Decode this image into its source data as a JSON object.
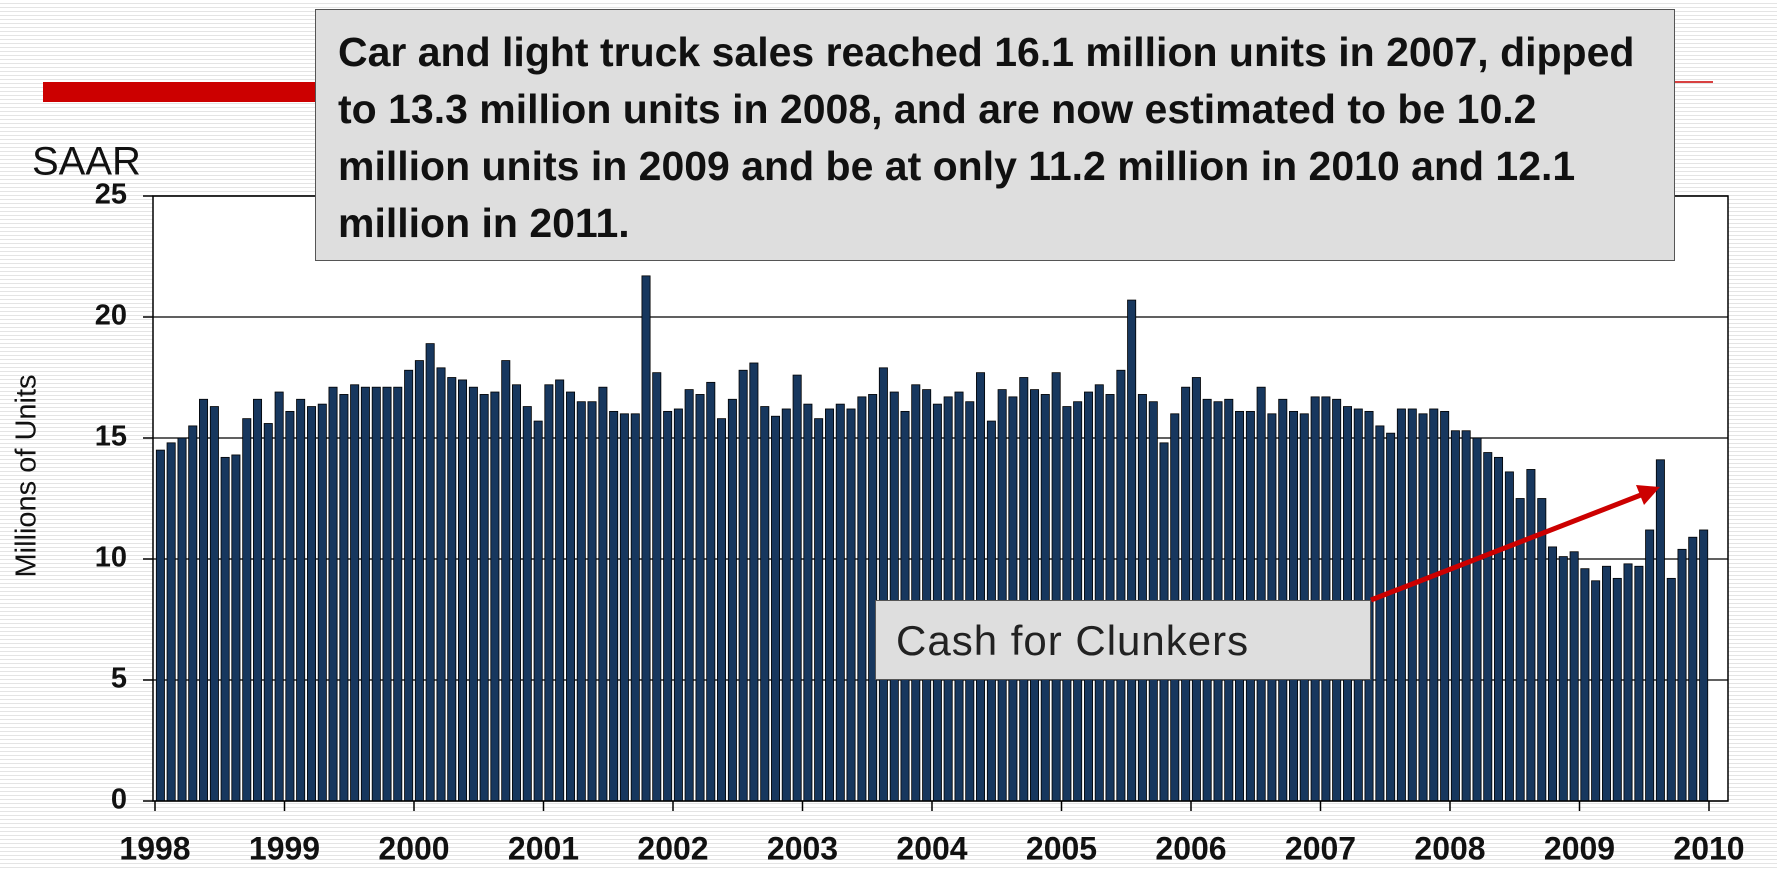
{
  "chart_data": {
    "type": "bar",
    "title": "Car and light truck sales reached 16.1 million units in 2007, dipped to 13.3 million units in 2008, and are now estimated to be 10.2 million units in 2009 and be at only 11.2 million in 2010 and 12.1 million in 2011.",
    "unit_label": "SAAR",
    "y_label": "Millions of Units",
    "annotation": "Cash for Clunkers",
    "color": "#17375e",
    "grid": true,
    "xlim": [
      1998,
      2010
    ],
    "xticks": [
      1998,
      1999,
      2000,
      2001,
      2002,
      2003,
      2004,
      2005,
      2006,
      2007,
      2008,
      2009,
      2010
    ],
    "ylim": [
      0,
      25
    ],
    "yticks": [
      0,
      5,
      10,
      15,
      20,
      25
    ],
    "x": [
      1998,
      1998.083,
      1998.167,
      1998.25,
      1998.333,
      1998.417,
      1998.5,
      1998.583,
      1998.667,
      1998.75,
      1998.833,
      1998.917,
      1999,
      1999.083,
      1999.167,
      1999.25,
      1999.333,
      1999.417,
      1999.5,
      1999.583,
      1999.667,
      1999.75,
      1999.833,
      1999.917,
      2000,
      2000.083,
      2000.167,
      2000.25,
      2000.333,
      2000.417,
      2000.5,
      2000.583,
      2000.667,
      2000.75,
      2000.833,
      2000.917,
      2001,
      2001.083,
      2001.167,
      2001.25,
      2001.333,
      2001.417,
      2001.5,
      2001.583,
      2001.667,
      2001.75,
      2001.833,
      2001.917,
      2002,
      2002.083,
      2002.167,
      2002.25,
      2002.333,
      2002.417,
      2002.5,
      2002.583,
      2002.667,
      2002.75,
      2002.833,
      2002.917,
      2003,
      2003.083,
      2003.167,
      2003.25,
      2003.333,
      2003.417,
      2003.5,
      2003.583,
      2003.667,
      2003.75,
      2003.833,
      2003.917,
      2004,
      2004.083,
      2004.167,
      2004.25,
      2004.333,
      2004.417,
      2004.5,
      2004.583,
      2004.667,
      2004.75,
      2004.833,
      2004.917,
      2005,
      2005.083,
      2005.167,
      2005.25,
      2005.333,
      2005.417,
      2005.5,
      2005.583,
      2005.667,
      2005.75,
      2005.833,
      2005.917,
      2006,
      2006.083,
      2006.167,
      2006.25,
      2006.333,
      2006.417,
      2006.5,
      2006.583,
      2006.667,
      2006.75,
      2006.833,
      2006.917,
      2007,
      2007.083,
      2007.167,
      2007.25,
      2007.333,
      2007.417,
      2007.5,
      2007.583,
      2007.667,
      2007.75,
      2007.833,
      2007.917,
      2008,
      2008.083,
      2008.167,
      2008.25,
      2008.333,
      2008.417,
      2008.5,
      2008.583,
      2008.667,
      2008.75,
      2008.833,
      2008.917,
      2009,
      2009.083,
      2009.167,
      2009.25,
      2009.333,
      2009.417,
      2009.5,
      2009.583,
      2009.667,
      2009.75,
      2009.833,
      2009.917
    ],
    "values": [
      14.5,
      14.8,
      15.0,
      15.5,
      16.6,
      16.3,
      14.2,
      14.3,
      15.8,
      16.6,
      15.6,
      16.9,
      16.1,
      16.6,
      16.3,
      16.4,
      17.1,
      16.8,
      17.2,
      17.1,
      17.1,
      17.1,
      17.1,
      17.8,
      18.2,
      18.9,
      17.9,
      17.5,
      17.4,
      17.1,
      16.8,
      16.9,
      18.2,
      17.2,
      16.3,
      15.7,
      17.2,
      17.4,
      16.9,
      16.5,
      16.5,
      17.1,
      16.1,
      16.0,
      16.0,
      21.7,
      17.7,
      16.1,
      16.2,
      17.0,
      16.8,
      17.3,
      15.8,
      16.6,
      17.8,
      18.1,
      16.3,
      15.9,
      16.2,
      17.6,
      16.4,
      15.8,
      16.2,
      16.4,
      16.2,
      16.7,
      16.8,
      17.9,
      16.9,
      16.1,
      17.2,
      17.0,
      16.4,
      16.7,
      16.9,
      16.5,
      17.7,
      15.7,
      17.0,
      16.7,
      17.5,
      17.0,
      16.8,
      17.7,
      16.3,
      16.5,
      16.9,
      17.2,
      16.8,
      17.8,
      20.7,
      16.8,
      16.5,
      14.8,
      16.0,
      17.1,
      17.5,
      16.6,
      16.5,
      16.6,
      16.1,
      16.1,
      17.1,
      16.0,
      16.6,
      16.1,
      16.0,
      16.7,
      16.7,
      16.6,
      16.3,
      16.2,
      16.1,
      15.5,
      15.2,
      16.2,
      16.2,
      16.0,
      16.2,
      16.1,
      15.3,
      15.3,
      15.0,
      14.4,
      14.2,
      13.6,
      12.5,
      13.7,
      12.5,
      10.5,
      10.1,
      10.3,
      9.6,
      9.1,
      9.7,
      9.2,
      9.8,
      9.7,
      11.2,
      14.1,
      9.2,
      10.4,
      10.9,
      11.2
    ]
  }
}
